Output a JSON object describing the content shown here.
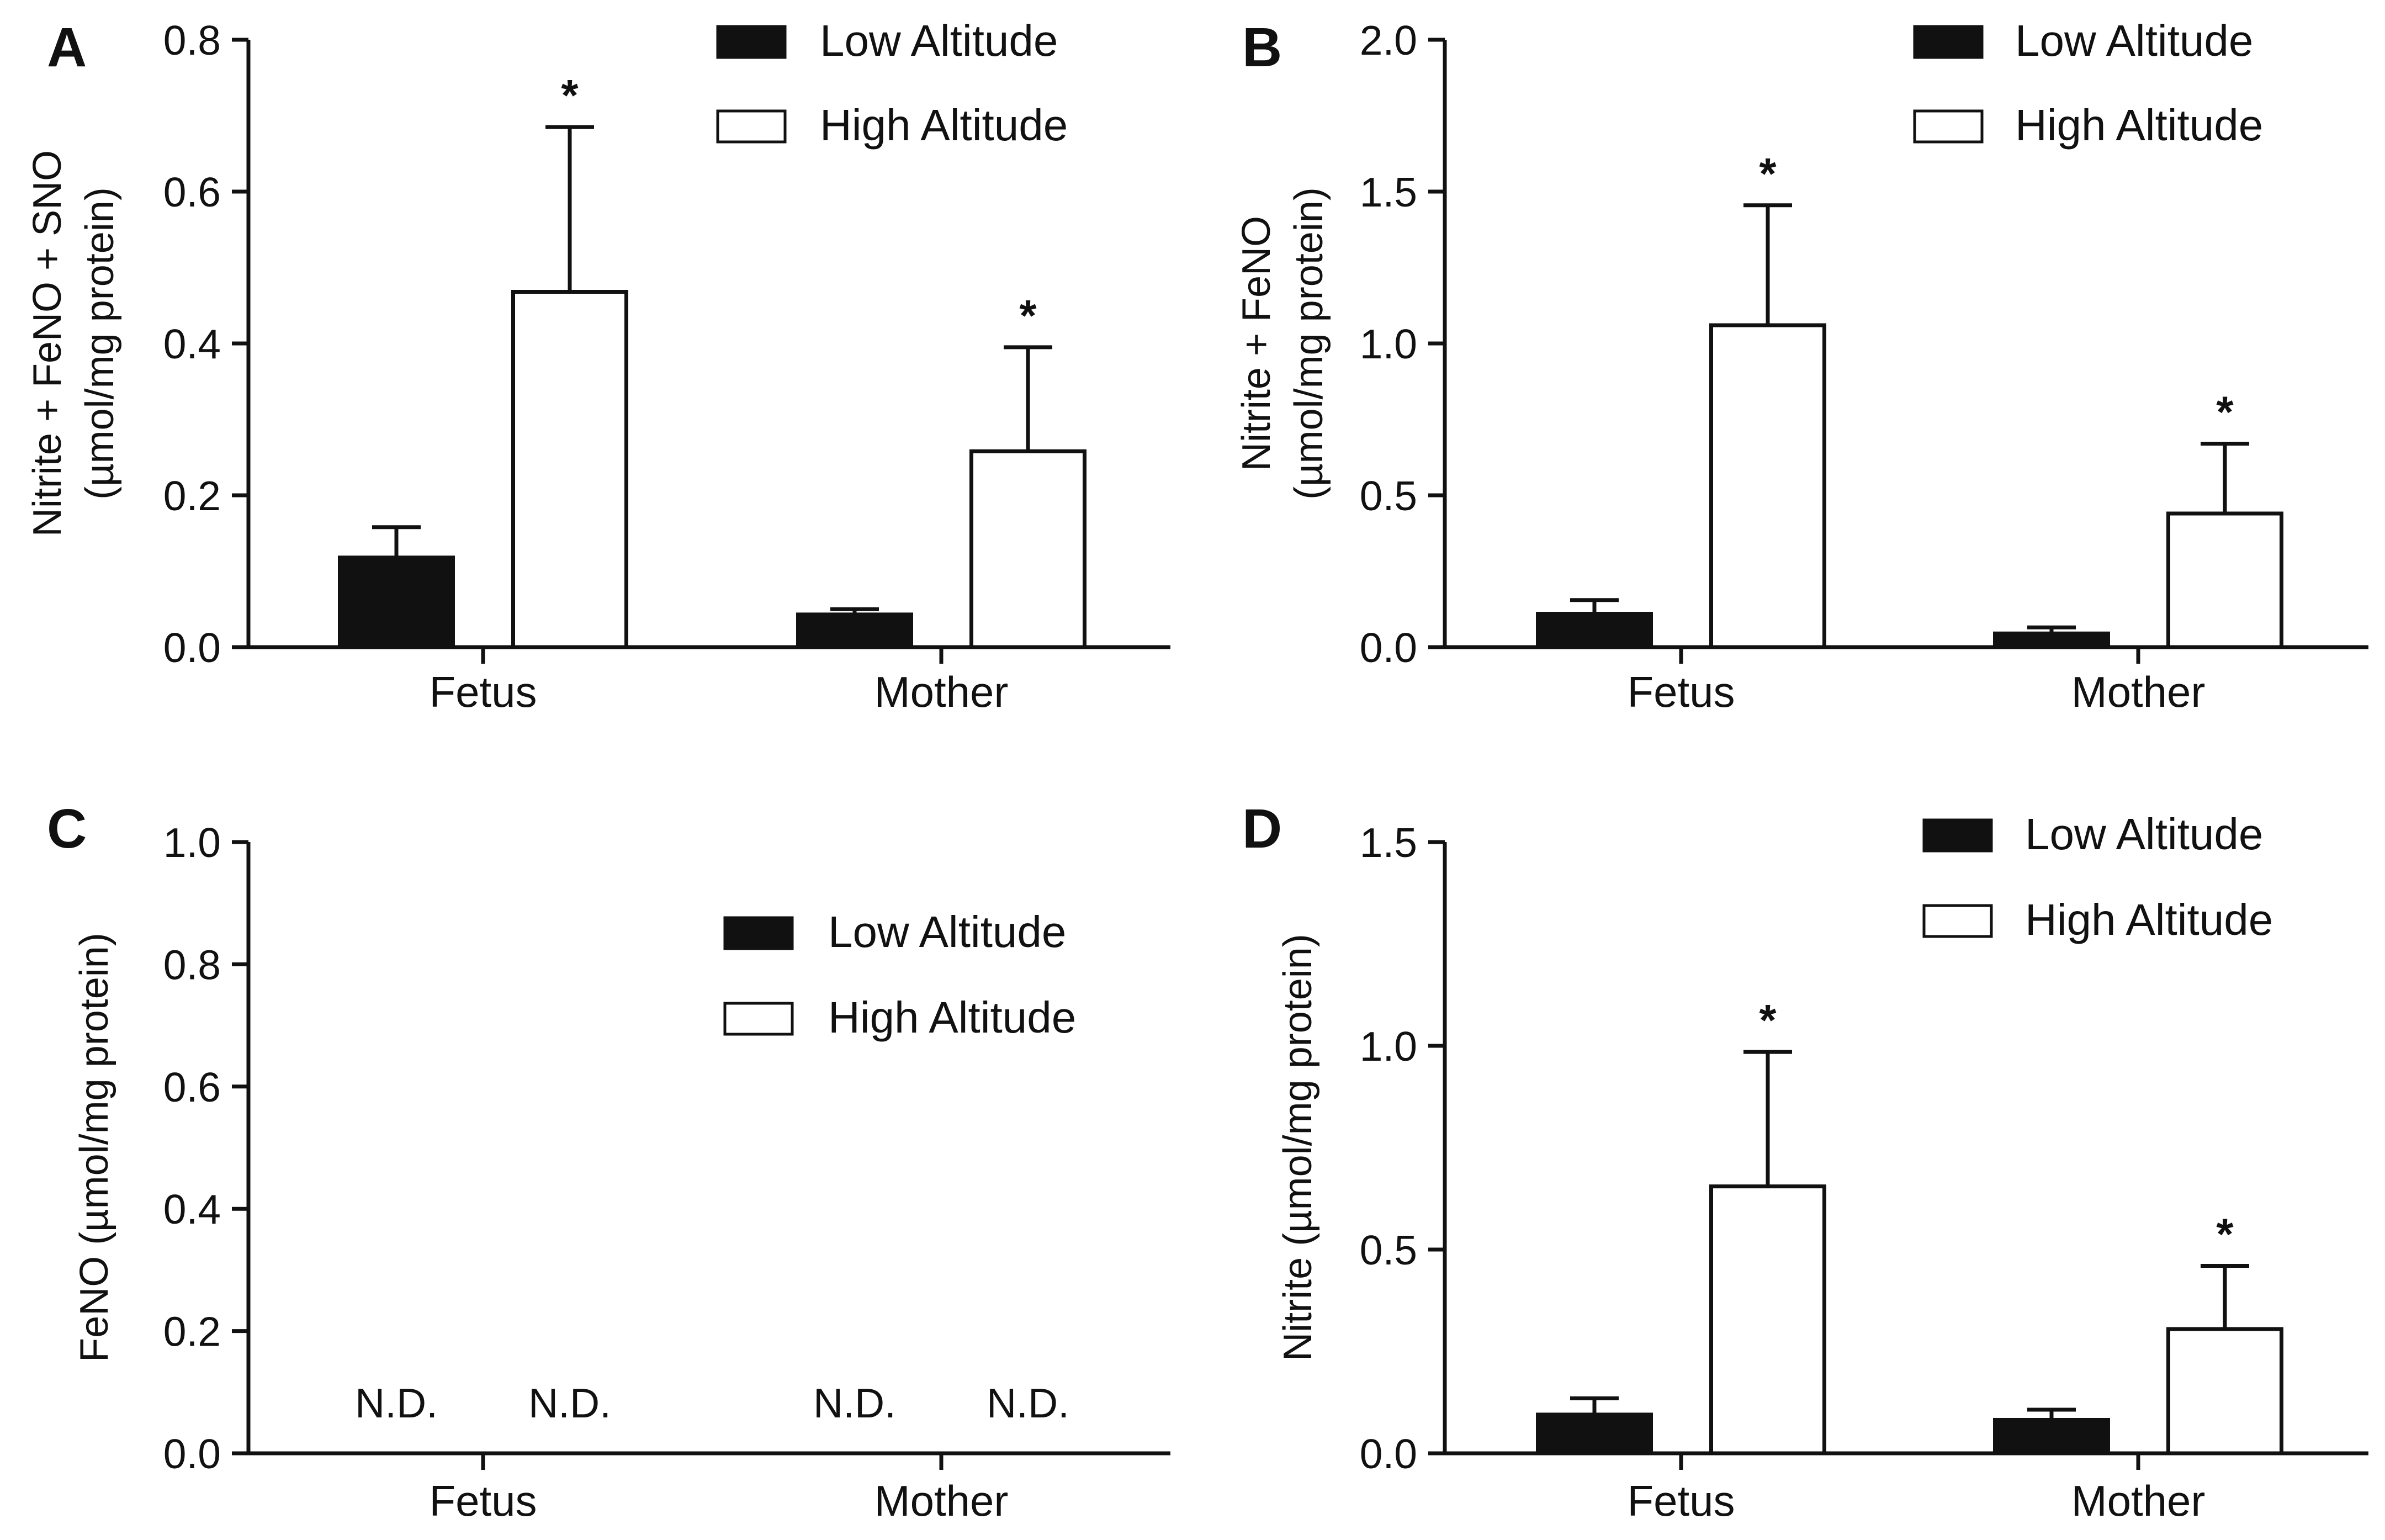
{
  "figure": {
    "legend": {
      "low": "Low Altitude",
      "high": "High Altitude"
    },
    "colors": {
      "low_fill": "#111111",
      "high_fill": "#ffffff",
      "stroke": "#111111"
    }
  },
  "chart_data": [
    {
      "panel": "A",
      "type": "bar",
      "categories": [
        "Fetus",
        "Mother"
      ],
      "series": [
        {
          "name": "Low Altitude",
          "values": [
            0.118,
            0.043
          ],
          "errors": [
            0.04,
            0.007
          ]
        },
        {
          "name": "High Altitude",
          "values": [
            0.468,
            0.258
          ],
          "errors": [
            0.217,
            0.137
          ]
        }
      ],
      "significance": [
        [
          false,
          false
        ],
        [
          true,
          true
        ]
      ],
      "significance_label": "*",
      "ylim": [
        0,
        0.8
      ],
      "yticks": [
        "0.0",
        "0.2",
        "0.4",
        "0.6",
        "0.8"
      ],
      "ylabel_line1": "Nitrite + FeNO + SNO",
      "ylabel_line2": "(µmol/mg protein)",
      "legend_position": "top-right"
    },
    {
      "panel": "B",
      "type": "bar",
      "categories": [
        "Fetus",
        "Mother"
      ],
      "series": [
        {
          "name": "Low Altitude",
          "values": [
            0.11,
            0.045
          ],
          "errors": [
            0.045,
            0.02
          ]
        },
        {
          "name": "High Altitude",
          "values": [
            1.06,
            0.44
          ],
          "errors": [
            0.395,
            0.23
          ]
        }
      ],
      "significance": [
        [
          false,
          false
        ],
        [
          true,
          true
        ]
      ],
      "significance_label": "*",
      "ylim": [
        0,
        2.0
      ],
      "yticks": [
        "0.0",
        "0.5",
        "1.0",
        "1.5",
        "2.0"
      ],
      "ylabel_line1": "Nitrite + FeNO",
      "ylabel_line2": "(µmol/mg protein)",
      "legend_position": "top-right"
    },
    {
      "panel": "C",
      "type": "bar",
      "categories": [
        "Fetus",
        "Mother"
      ],
      "series": [
        {
          "name": "Low Altitude",
          "values": [
            null,
            null
          ],
          "errors": [
            null,
            null
          ]
        },
        {
          "name": "High Altitude",
          "values": [
            null,
            null
          ],
          "errors": [
            null,
            null
          ]
        }
      ],
      "not_detected_label": "N.D.",
      "ylim": [
        0,
        1.0
      ],
      "yticks": [
        "0.0",
        "0.2",
        "0.4",
        "0.6",
        "0.8",
        "1.0"
      ],
      "ylabel_line1": "FeNO  (µmol/mg protein)",
      "ylabel_line2": "",
      "legend_position": "center-right"
    },
    {
      "panel": "D",
      "type": "bar",
      "categories": [
        "Fetus",
        "Mother"
      ],
      "series": [
        {
          "name": "Low Altitude",
          "values": [
            0.095,
            0.082
          ],
          "errors": [
            0.04,
            0.025
          ]
        },
        {
          "name": "High Altitude",
          "values": [
            0.655,
            0.305
          ],
          "errors": [
            0.33,
            0.155
          ]
        }
      ],
      "significance": [
        [
          false,
          false
        ],
        [
          true,
          true
        ]
      ],
      "significance_label": "*",
      "ylim": [
        0,
        1.5
      ],
      "yticks": [
        "0.0",
        "0.5",
        "1.0",
        "1.5"
      ],
      "ylabel_line1": "Nitrite  (µmol/mg protein)",
      "ylabel_line2": "",
      "legend_position": "top-right"
    }
  ]
}
